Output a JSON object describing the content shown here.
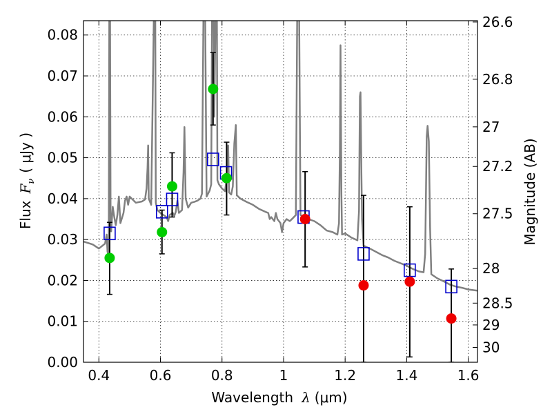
{
  "chart_data": {
    "type": "scatter",
    "xlabel_text": "Wavelength",
    "xlabel_symbol": "λ",
    "xlabel_unit": "(μm)",
    "ylabel_left_text": "Flux",
    "ylabel_left_symbol": "F",
    "ylabel_left_sub": "ν",
    "ylabel_left_unit": "( μJy )",
    "ylabel_right": "Magnitude (AB)",
    "xlim": [
      0.35,
      1.63
    ],
    "ylim": [
      0.0,
      0.0835
    ],
    "grid": true,
    "x_ticks": [
      {
        "value": 0.4,
        "label": "0.4"
      },
      {
        "value": 0.6,
        "label": "0.6"
      },
      {
        "value": 0.8,
        "label": "0.8"
      },
      {
        "value": 1.0,
        "label": "1"
      },
      {
        "value": 1.2,
        "label": "1.2"
      },
      {
        "value": 1.4,
        "label": "1.4"
      },
      {
        "value": 1.6,
        "label": "1.6"
      }
    ],
    "y_ticks": [
      {
        "value": 0.0,
        "label": "0.00"
      },
      {
        "value": 0.01,
        "label": "0.01"
      },
      {
        "value": 0.02,
        "label": "0.02"
      },
      {
        "value": 0.03,
        "label": "0.03"
      },
      {
        "value": 0.04,
        "label": "0.04"
      },
      {
        "value": 0.05,
        "label": "0.05"
      },
      {
        "value": 0.06,
        "label": "0.06"
      },
      {
        "value": 0.07,
        "label": "0.07"
      },
      {
        "value": 0.08,
        "label": "0.08"
      }
    ],
    "right_ticks": [
      {
        "mag": 26.6,
        "label": "26.6"
      },
      {
        "mag": 26.8,
        "label": "26.8"
      },
      {
        "mag": 27.0,
        "label": "27"
      },
      {
        "mag": 27.2,
        "label": "27.2"
      },
      {
        "mag": 27.5,
        "label": "27.5"
      },
      {
        "mag": 28.0,
        "label": "28"
      },
      {
        "mag": 28.5,
        "label": "28.5"
      },
      {
        "mag": 29.0,
        "label": "29"
      },
      {
        "mag": 30.0,
        "label": "30"
      }
    ],
    "series": [
      {
        "kind": "model-spectrum",
        "color": "#808080",
        "points": [
          [
            0.35,
            0.0295
          ],
          [
            0.38,
            0.0288
          ],
          [
            0.4,
            0.0278
          ],
          [
            0.42,
            0.029
          ],
          [
            0.425,
            0.0312
          ],
          [
            0.428,
            0.027
          ],
          [
            0.432,
            0.026
          ],
          [
            0.434,
            0.092
          ],
          [
            0.436,
            0.092
          ],
          [
            0.438,
            0.0345
          ],
          [
            0.44,
            0.032
          ],
          [
            0.445,
            0.038
          ],
          [
            0.45,
            0.0355
          ],
          [
            0.455,
            0.0335
          ],
          [
            0.46,
            0.036
          ],
          [
            0.465,
            0.0405
          ],
          [
            0.47,
            0.034
          ],
          [
            0.48,
            0.0365
          ],
          [
            0.485,
            0.0395
          ],
          [
            0.49,
            0.0405
          ],
          [
            0.495,
            0.0385
          ],
          [
            0.5,
            0.0405
          ],
          [
            0.52,
            0.039
          ],
          [
            0.54,
            0.0393
          ],
          [
            0.55,
            0.0398
          ],
          [
            0.555,
            0.0425
          ],
          [
            0.558,
            0.0475
          ],
          [
            0.56,
            0.053
          ],
          [
            0.562,
            0.04
          ],
          [
            0.57,
            0.0385
          ],
          [
            0.58,
            0.092
          ],
          [
            0.583,
            0.092
          ],
          [
            0.585,
            0.039
          ],
          [
            0.59,
            0.0372
          ],
          [
            0.6,
            0.0365
          ],
          [
            0.62,
            0.0355
          ],
          [
            0.625,
            0.0345
          ],
          [
            0.63,
            0.036
          ],
          [
            0.64,
            0.0365
          ],
          [
            0.645,
            0.0358
          ],
          [
            0.65,
            0.0368
          ],
          [
            0.655,
            0.0395
          ],
          [
            0.66,
            0.0365
          ],
          [
            0.67,
            0.0372
          ],
          [
            0.675,
            0.0465
          ],
          [
            0.678,
            0.0575
          ],
          [
            0.682,
            0.04
          ],
          [
            0.69,
            0.0378
          ],
          [
            0.7,
            0.039
          ],
          [
            0.71,
            0.0392
          ],
          [
            0.72,
            0.0395
          ],
          [
            0.73,
            0.04
          ],
          [
            0.735,
            0.0412
          ],
          [
            0.74,
            0.088
          ],
          [
            0.745,
            0.088
          ],
          [
            0.75,
            0.0405
          ],
          [
            0.76,
            0.042
          ],
          [
            0.765,
            0.0435
          ],
          [
            0.768,
            0.092
          ],
          [
            0.772,
            0.092
          ],
          [
            0.775,
            0.06
          ],
          [
            0.78,
            0.092
          ],
          [
            0.783,
            0.092
          ],
          [
            0.785,
            0.0445
          ],
          [
            0.79,
            0.0435
          ],
          [
            0.8,
            0.0425
          ],
          [
            0.81,
            0.0418
          ],
          [
            0.815,
            0.045
          ],
          [
            0.82,
            0.053
          ],
          [
            0.823,
            0.0415
          ],
          [
            0.83,
            0.041
          ],
          [
            0.835,
            0.043
          ],
          [
            0.84,
            0.0535
          ],
          [
            0.845,
            0.058
          ],
          [
            0.848,
            0.0408
          ],
          [
            0.86,
            0.04
          ],
          [
            0.88,
            0.0392
          ],
          [
            0.9,
            0.0385
          ],
          [
            0.92,
            0.0375
          ],
          [
            0.94,
            0.0368
          ],
          [
            0.95,
            0.0365
          ],
          [
            0.955,
            0.035
          ],
          [
            0.96,
            0.0355
          ],
          [
            0.97,
            0.0345
          ],
          [
            0.975,
            0.0365
          ],
          [
            0.98,
            0.035
          ],
          [
            0.99,
            0.034
          ],
          [
            0.995,
            0.0318
          ],
          [
            1.0,
            0.034
          ],
          [
            1.01,
            0.035
          ],
          [
            1.02,
            0.0345
          ],
          [
            1.03,
            0.0352
          ],
          [
            1.04,
            0.036
          ],
          [
            1.045,
            0.092
          ],
          [
            1.05,
            0.092
          ],
          [
            1.055,
            0.036
          ],
          [
            1.065,
            0.0355
          ],
          [
            1.08,
            0.035
          ],
          [
            1.1,
            0.0345
          ],
          [
            1.12,
            0.0335
          ],
          [
            1.14,
            0.0322
          ],
          [
            1.16,
            0.0318
          ],
          [
            1.175,
            0.0312
          ],
          [
            1.18,
            0.034
          ],
          [
            1.183,
            0.052
          ],
          [
            1.185,
            0.0775
          ],
          [
            1.188,
            0.041
          ],
          [
            1.19,
            0.0312
          ],
          [
            1.2,
            0.0315
          ],
          [
            1.22,
            0.0305
          ],
          [
            1.24,
            0.0298
          ],
          [
            1.245,
            0.037
          ],
          [
            1.248,
            0.065
          ],
          [
            1.25,
            0.066
          ],
          [
            1.253,
            0.046
          ],
          [
            1.255,
            0.035
          ],
          [
            1.26,
            0.0285
          ],
          [
            1.28,
            0.0278
          ],
          [
            1.3,
            0.027
          ],
          [
            1.32,
            0.0262
          ],
          [
            1.34,
            0.0256
          ],
          [
            1.36,
            0.0248
          ],
          [
            1.38,
            0.0242
          ],
          [
            1.4,
            0.0236
          ],
          [
            1.42,
            0.0228
          ],
          [
            1.44,
            0.0222
          ],
          [
            1.455,
            0.022
          ],
          [
            1.46,
            0.0265
          ],
          [
            1.465,
            0.0552
          ],
          [
            1.468,
            0.0578
          ],
          [
            1.472,
            0.054
          ],
          [
            1.476,
            0.033
          ],
          [
            1.48,
            0.0215
          ],
          [
            1.5,
            0.0205
          ],
          [
            1.52,
            0.0198
          ],
          [
            1.54,
            0.019
          ],
          [
            1.56,
            0.0185
          ],
          [
            1.58,
            0.0182
          ],
          [
            1.6,
            0.0178
          ],
          [
            1.63,
            0.0175
          ]
        ]
      },
      {
        "kind": "model-photometry",
        "marker": "open-square",
        "color": "#0000cc",
        "points": [
          [
            0.435,
            0.0315
          ],
          [
            0.605,
            0.0368
          ],
          [
            0.638,
            0.0398
          ],
          [
            0.771,
            0.0496
          ],
          [
            0.813,
            0.0463
          ],
          [
            1.065,
            0.0355
          ],
          [
            1.26,
            0.0265
          ],
          [
            1.41,
            0.0225
          ],
          [
            1.545,
            0.0185
          ]
        ]
      },
      {
        "kind": "optical-observations",
        "marker": "filled-circle",
        "color": "#00cc00",
        "points": [
          {
            "x": 0.435,
            "y": 0.0255,
            "err": null
          },
          {
            "x": 0.605,
            "y": 0.0318,
            "err": null
          },
          {
            "x": 0.638,
            "y": 0.043,
            "err": [
              0.0355,
              0.0512
            ]
          },
          {
            "x": 0.771,
            "y": 0.0668,
            "err": [
              0.058,
              0.0757
            ]
          },
          {
            "x": 0.815,
            "y": 0.045,
            "err": [
              0.036,
              0.0538
            ]
          }
        ]
      },
      {
        "kind": "nir-observations",
        "marker": "filled-circle",
        "color": "#ee0000",
        "points": [
          {
            "x": 1.07,
            "y": 0.035,
            "err": [
              0.0233,
              0.0466
            ]
          },
          {
            "x": 1.26,
            "y": 0.0188,
            "err": [
              0.0,
              0.0408
            ]
          },
          {
            "x": 1.41,
            "y": 0.0197,
            "err": [
              0.0013,
              0.038
            ]
          },
          {
            "x": 1.545,
            "y": 0.0107,
            "err": [
              0.0,
              0.0228
            ]
          }
        ]
      }
    ],
    "extra_errorbars": [
      {
        "x": 0.435,
        "range": [
          0.0166,
          0.0342
        ]
      },
      {
        "x": 0.605,
        "range": [
          0.0265,
          0.0372
        ]
      }
    ]
  }
}
